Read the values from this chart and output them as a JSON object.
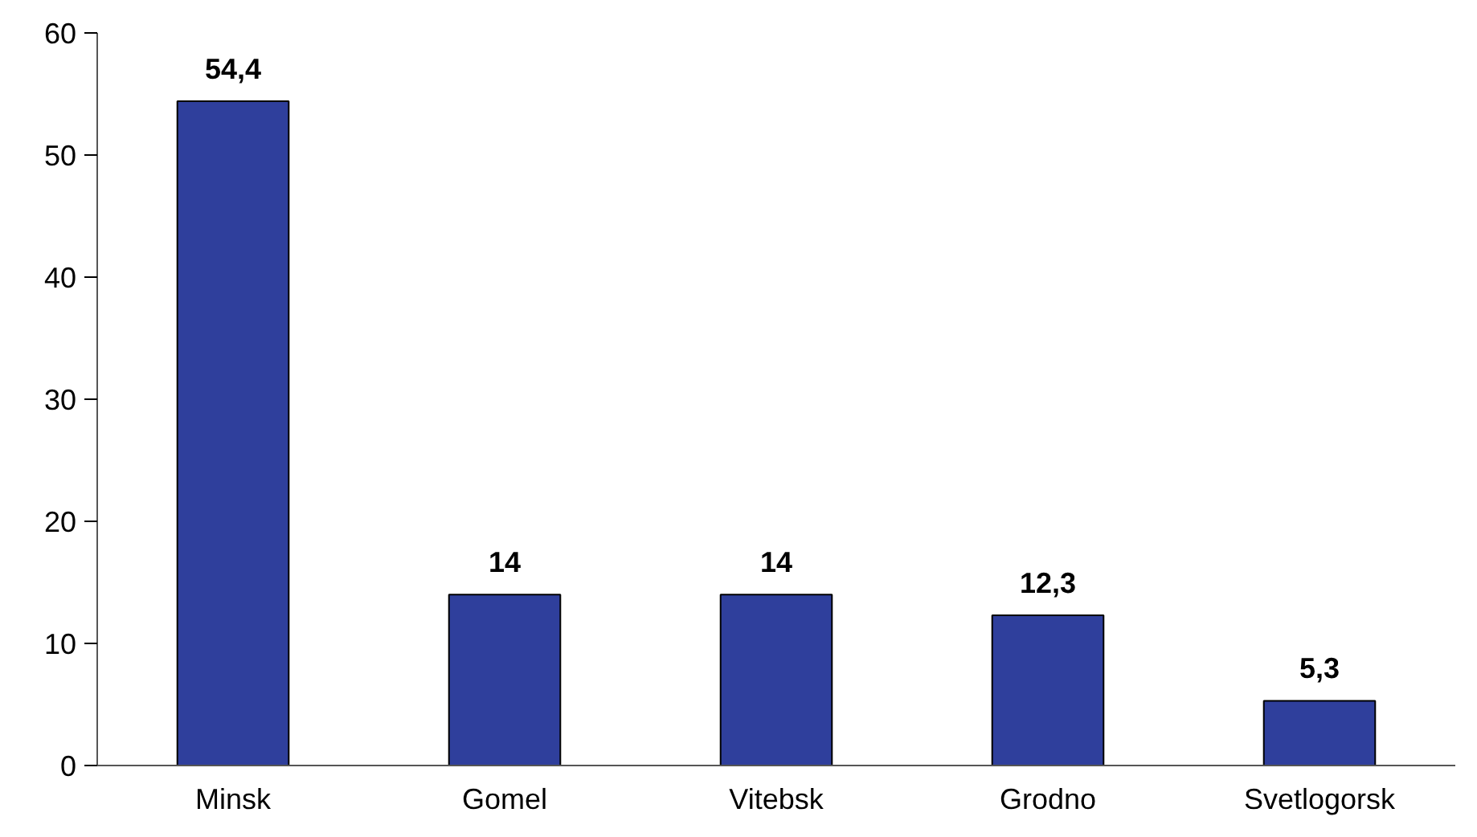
{
  "chart_data": {
    "type": "bar",
    "categories": [
      "Minsk",
      "Gomel",
      "Vitebsk",
      "Grodno",
      "Svetlogorsk"
    ],
    "values": [
      54.4,
      14,
      14,
      12.3,
      5.3
    ],
    "value_labels": [
      "54,4",
      "14",
      "14",
      "12,3",
      "5,3"
    ],
    "color": "#2f3f9c",
    "ylim": [
      0,
      60
    ],
    "yticks": [
      0,
      10,
      20,
      30,
      40,
      50,
      60
    ],
    "grid": false
  }
}
